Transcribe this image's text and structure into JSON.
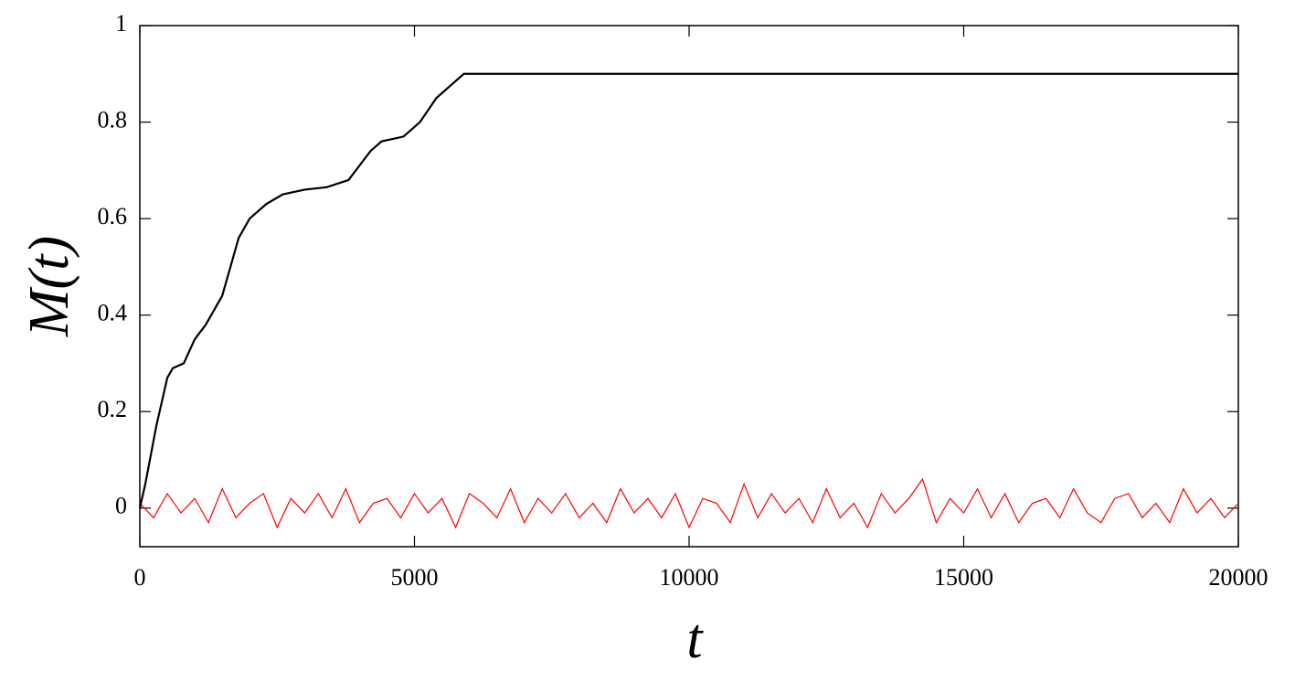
{
  "chart_data": {
    "type": "line",
    "xlabel": "t",
    "ylabel": "M(t)",
    "xlim": [
      0,
      20000
    ],
    "xticks": [
      0,
      5000,
      10000,
      15000,
      20000
    ],
    "ylim": [
      -0.08,
      1
    ],
    "yticks": [
      0,
      0.2,
      0.4,
      0.6,
      0.8,
      1
    ],
    "grid": false,
    "series": [
      {
        "color": "#000000",
        "x": [
          0,
          100,
          300,
          500,
          600,
          800,
          1000,
          1200,
          1500,
          1800,
          2000,
          2300,
          2600,
          3000,
          3400,
          3800,
          4200,
          4400,
          4800,
          5100,
          5400,
          5700,
          5900,
          7000,
          8000,
          9000,
          10000,
          11000,
          12000,
          13000,
          14000,
          15000,
          16000,
          17000,
          18000,
          19000,
          20000
        ],
        "values": [
          0,
          0.05,
          0.17,
          0.27,
          0.29,
          0.3,
          0.35,
          0.38,
          0.44,
          0.56,
          0.6,
          0.63,
          0.65,
          0.66,
          0.665,
          0.68,
          0.74,
          0.76,
          0.77,
          0.8,
          0.85,
          0.88,
          0.9,
          0.9,
          0.9,
          0.9,
          0.9,
          0.9,
          0.9,
          0.9,
          0.9,
          0.9,
          0.9,
          0.9,
          0.9,
          0.9,
          0.9
        ]
      },
      {
        "color": "#ff0000",
        "x": [
          0,
          250,
          500,
          750,
          1000,
          1250,
          1500,
          1750,
          2000,
          2250,
          2500,
          2750,
          3000,
          3250,
          3500,
          3750,
          4000,
          4250,
          4500,
          4750,
          5000,
          5250,
          5500,
          5750,
          6000,
          6250,
          6500,
          6750,
          7000,
          7250,
          7500,
          7750,
          8000,
          8250,
          8500,
          8750,
          9000,
          9250,
          9500,
          9750,
          10000,
          10250,
          10500,
          10750,
          11000,
          11250,
          11500,
          11750,
          12000,
          12250,
          12500,
          12750,
          13000,
          13250,
          13500,
          13750,
          14000,
          14250,
          14500,
          14750,
          15000,
          15250,
          15500,
          15750,
          16000,
          16250,
          16500,
          16750,
          17000,
          17250,
          17500,
          17750,
          18000,
          18250,
          18500,
          18750,
          19000,
          19250,
          19500,
          19750,
          20000
        ],
        "values": [
          0.01,
          -0.02,
          0.03,
          -0.01,
          0.02,
          -0.03,
          0.04,
          -0.02,
          0.01,
          0.03,
          -0.04,
          0.02,
          -0.01,
          0.03,
          -0.02,
          0.04,
          -0.03,
          0.01,
          0.02,
          -0.02,
          0.03,
          -0.01,
          0.02,
          -0.04,
          0.03,
          0.01,
          -0.02,
          0.04,
          -0.03,
          0.02,
          -0.01,
          0.03,
          -0.02,
          0.01,
          -0.03,
          0.04,
          -0.01,
          0.02,
          -0.02,
          0.03,
          -0.04,
          0.02,
          0.01,
          -0.03,
          0.05,
          -0.02,
          0.03,
          -0.01,
          0.02,
          -0.03,
          0.04,
          -0.02,
          0.01,
          -0.04,
          0.03,
          -0.01,
          0.02,
          0.06,
          -0.03,
          0.02,
          -0.01,
          0.04,
          -0.02,
          0.03,
          -0.03,
          0.01,
          0.02,
          -0.02,
          0.04,
          -0.01,
          -0.03,
          0.02,
          0.03,
          -0.02,
          0.01,
          -0.03,
          0.04,
          -0.01,
          0.02,
          -0.02,
          0.01
        ]
      }
    ]
  }
}
